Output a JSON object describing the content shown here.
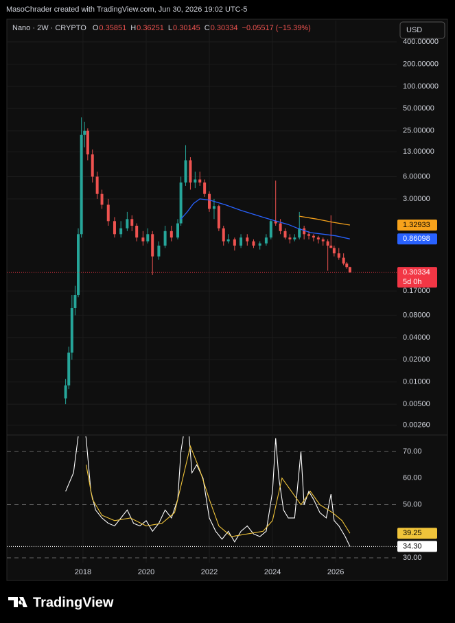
{
  "header": {
    "credit": "MasoChrader created with TradingView.com, Jun 30, 2026 19:02 UTC-5",
    "currency": "USD"
  },
  "footer": {
    "brand": "TradingView"
  },
  "chart_data": [
    {
      "type": "candlestick",
      "title": "Nano · 2W · CRYPTO",
      "legend": [
        {
          "label": "O",
          "value": 0.35851
        },
        {
          "label": "H",
          "value": 0.36251
        },
        {
          "label": "L",
          "value": 0.30145
        },
        {
          "label": "C",
          "value": 0.30334
        }
      ],
      "change": "−0.05517 (−15.39%)",
      "up_color": "#26a69a",
      "down_color": "#ef5350",
      "log_scale": true,
      "grid": true,
      "ylim": [
        0.002,
        776
      ],
      "yticks": [
        {
          "value": 400,
          "label": "400.00000"
        },
        {
          "value": 200,
          "label": "200.00000"
        },
        {
          "value": 100,
          "label": "100.00000"
        },
        {
          "value": 50,
          "label": "50.00000"
        },
        {
          "value": 25,
          "label": "25.00000"
        },
        {
          "value": 13,
          "label": "13.00000"
        },
        {
          "value": 6,
          "label": "6.00000"
        },
        {
          "value": 3,
          "label": "3.00000"
        },
        {
          "value": 0.17,
          "label": "0.17000"
        },
        {
          "value": 0.08,
          "label": "0.08000"
        },
        {
          "value": 0.04,
          "label": "0.04000"
        },
        {
          "value": 0.02,
          "label": "0.02000"
        },
        {
          "value": 0.01,
          "label": "0.01000"
        },
        {
          "value": 0.005,
          "label": "0.00500"
        },
        {
          "value": 0.0026,
          "label": "0.00260"
        }
      ],
      "x": [
        2017.45,
        2017.55,
        2017.65,
        2017.75,
        2017.85,
        2017.95,
        2018.05,
        2018.15,
        2018.3,
        2018.45,
        2018.6,
        2018.8,
        2019.0,
        2019.2,
        2019.4,
        2019.55,
        2019.7,
        2019.9,
        2020.05,
        2020.2,
        2020.4,
        2020.6,
        2020.8,
        2021.0,
        2021.1,
        2021.25,
        2021.4,
        2021.55,
        2021.7,
        2021.85,
        2022.0,
        2022.15,
        2022.3,
        2022.45,
        2022.6,
        2022.8,
        2023.0,
        2023.2,
        2023.4,
        2023.6,
        2023.8,
        2023.95,
        2024.1,
        2024.25,
        2024.4,
        2024.55,
        2024.7,
        2024.85,
        2025.0,
        2025.15,
        2025.3,
        2025.45,
        2025.6,
        2025.75,
        2025.85,
        2025.95,
        2026.1,
        2026.25,
        2026.35,
        2026.45
      ],
      "open": [
        0.006,
        0.009,
        0.025,
        0.1,
        0.15,
        1.0,
        22,
        25,
        12,
        6,
        3.5,
        2.5,
        1.5,
        1.0,
        1.2,
        1.6,
        1.3,
        0.9,
        0.8,
        1.0,
        0.5,
        0.7,
        1.1,
        0.9,
        1.4,
        5,
        10,
        5,
        5.5,
        5,
        3.5,
        2.2,
        2.4,
        1.2,
        0.8,
        0.85,
        0.7,
        0.9,
        0.8,
        0.7,
        0.75,
        0.9,
        1.5,
        1.4,
        1.1,
        0.9,
        0.85,
        0.9,
        1.2,
        1.0,
        0.95,
        0.9,
        0.85,
        0.8,
        0.7,
        0.65,
        0.55,
        0.48,
        0.4,
        0.35851
      ],
      "high": [
        0.011,
        0.03,
        0.15,
        0.2,
        1.2,
        38,
        33,
        27,
        14,
        7,
        4,
        3,
        1.7,
        1.5,
        2.0,
        1.8,
        1.4,
        1.1,
        1.2,
        1.1,
        0.8,
        1.3,
        1.3,
        1.6,
        6,
        16,
        11,
        7,
        7,
        5.5,
        3.8,
        3,
        2.5,
        1.3,
        1.0,
        0.9,
        1.0,
        1.0,
        0.85,
        0.8,
        1.0,
        1.6,
        5.3,
        1.6,
        1.2,
        1.0,
        1.0,
        2.0,
        1.3,
        1.1,
        1.0,
        0.95,
        0.9,
        0.85,
        1.8,
        0.7,
        0.65,
        0.55,
        0.42,
        0.36251
      ],
      "low": [
        0.005,
        0.008,
        0.02,
        0.08,
        0.14,
        0.9,
        15,
        10,
        5,
        3,
        2.2,
        1.3,
        0.9,
        0.9,
        1.1,
        1.1,
        0.8,
        0.7,
        0.75,
        0.28,
        0.45,
        0.65,
        0.8,
        0.85,
        1.3,
        4.5,
        4,
        4.2,
        4.5,
        3.2,
        2,
        1.6,
        1.1,
        0.7,
        0.75,
        0.6,
        0.65,
        0.7,
        0.65,
        0.62,
        0.7,
        0.85,
        1.3,
        1.0,
        0.85,
        0.75,
        0.8,
        0.85,
        0.85,
        0.85,
        0.8,
        0.75,
        0.7,
        0.32,
        0.65,
        0.5,
        0.45,
        0.38,
        0.34,
        0.30145
      ],
      "close": [
        0.009,
        0.025,
        0.1,
        0.15,
        1.0,
        22,
        25,
        12,
        6,
        3.5,
        2.5,
        1.5,
        1.0,
        1.2,
        1.6,
        1.3,
        0.9,
        0.8,
        1.0,
        0.5,
        0.7,
        1.1,
        0.9,
        1.4,
        5,
        10,
        5,
        5.5,
        5,
        3.5,
        2.2,
        2.4,
        1.2,
        0.8,
        0.85,
        0.7,
        0.9,
        0.8,
        0.7,
        0.75,
        0.9,
        1.5,
        1.4,
        1.1,
        0.9,
        0.85,
        0.9,
        1.2,
        1.0,
        0.95,
        0.9,
        0.85,
        0.8,
        0.7,
        0.65,
        0.55,
        0.48,
        0.4,
        0.35851,
        0.30334
      ],
      "lines": [
        {
          "color": "#2962ff",
          "x": [
            2021.1,
            2021.3,
            2021.5,
            2021.7,
            2022.0,
            2022.5,
            2023.0,
            2023.5,
            2024.0,
            2024.5,
            2024.8,
            2025.2,
            2025.6,
            2026.0,
            2026.45
          ],
          "values": [
            1.6,
            2.0,
            2.6,
            3.0,
            2.9,
            2.5,
            2.1,
            1.8,
            1.55,
            1.35,
            1.2,
            1.05,
            1.0,
            0.95,
            0.86098
          ]
        },
        {
          "color": "#f7a21b",
          "x": [
            2024.85,
            2025.4,
            2025.9,
            2026.45
          ],
          "values": [
            1.75,
            1.6,
            1.45,
            1.32933
          ]
        }
      ],
      "price_tags": [
        {
          "value": 1.32933,
          "color": "#f7a21b"
        },
        {
          "value": 0.86098,
          "color": "#2962ff"
        },
        {
          "value": 0.30334,
          "color": "#f23645",
          "countdown": "5d 0h",
          "line": true
        }
      ]
    },
    {
      "type": "line",
      "ylim": [
        28.2,
        75.7
      ],
      "yticks": [
        {
          "value": 70,
          "label": "70.00",
          "dashed": true
        },
        {
          "value": 60,
          "label": "60.00"
        },
        {
          "value": 50,
          "label": "50.00",
          "dashed": true
        },
        {
          "value": 30,
          "label": "30.00",
          "dashed": true
        }
      ],
      "xlim": [
        2015.59,
        2027.93
      ],
      "xticks": [
        2018,
        2020,
        2022,
        2024,
        2026
      ],
      "series": [
        {
          "color": "#ffffff",
          "x": [
            2017.45,
            2017.7,
            2017.95,
            2018.1,
            2018.25,
            2018.4,
            2018.6,
            2018.8,
            2019.0,
            2019.2,
            2019.4,
            2019.6,
            2019.8,
            2020.0,
            2020.2,
            2020.4,
            2020.6,
            2020.8,
            2021.0,
            2021.1,
            2021.3,
            2021.45,
            2021.6,
            2021.8,
            2022.0,
            2022.2,
            2022.4,
            2022.6,
            2022.8,
            2023.0,
            2023.2,
            2023.4,
            2023.6,
            2023.8,
            2024.0,
            2024.1,
            2024.2,
            2024.35,
            2024.5,
            2024.7,
            2024.9,
            2025.0,
            2025.15,
            2025.3,
            2025.5,
            2025.7,
            2025.85,
            2025.95,
            2026.1,
            2026.3,
            2026.45
          ],
          "values": [
            55,
            62,
            85,
            75,
            55,
            48,
            45,
            43,
            42,
            45,
            48,
            43,
            42,
            44,
            40,
            43,
            48,
            45,
            52,
            70,
            85,
            62,
            65,
            60,
            45,
            40,
            37,
            40,
            36,
            40,
            42,
            39,
            38,
            40,
            55,
            75,
            60,
            48,
            45,
            45,
            70,
            50,
            55,
            52,
            47,
            45,
            54,
            44,
            42,
            38,
            34.3
          ]
        },
        {
          "color": "#f0c43a",
          "x": [
            2018.1,
            2018.3,
            2018.6,
            2019.0,
            2019.5,
            2020.0,
            2020.5,
            2020.9,
            2021.2,
            2021.4,
            2021.7,
            2022.0,
            2022.3,
            2022.7,
            2023.2,
            2023.7,
            2024.0,
            2024.3,
            2024.6,
            2024.9,
            2025.2,
            2025.5,
            2025.9,
            2026.2,
            2026.45
          ],
          "values": [
            65,
            52,
            46,
            44,
            45,
            42,
            43,
            47,
            62,
            72,
            63,
            52,
            42,
            38,
            39,
            40,
            44,
            60,
            55,
            50,
            55,
            50,
            47,
            44,
            39.25
          ]
        }
      ],
      "price_tags": [
        {
          "value": 39.25,
          "color": "#f0c43a"
        },
        {
          "value": 34.3,
          "label": "34.30",
          "color": "#ffffff",
          "line": true
        }
      ]
    }
  ]
}
